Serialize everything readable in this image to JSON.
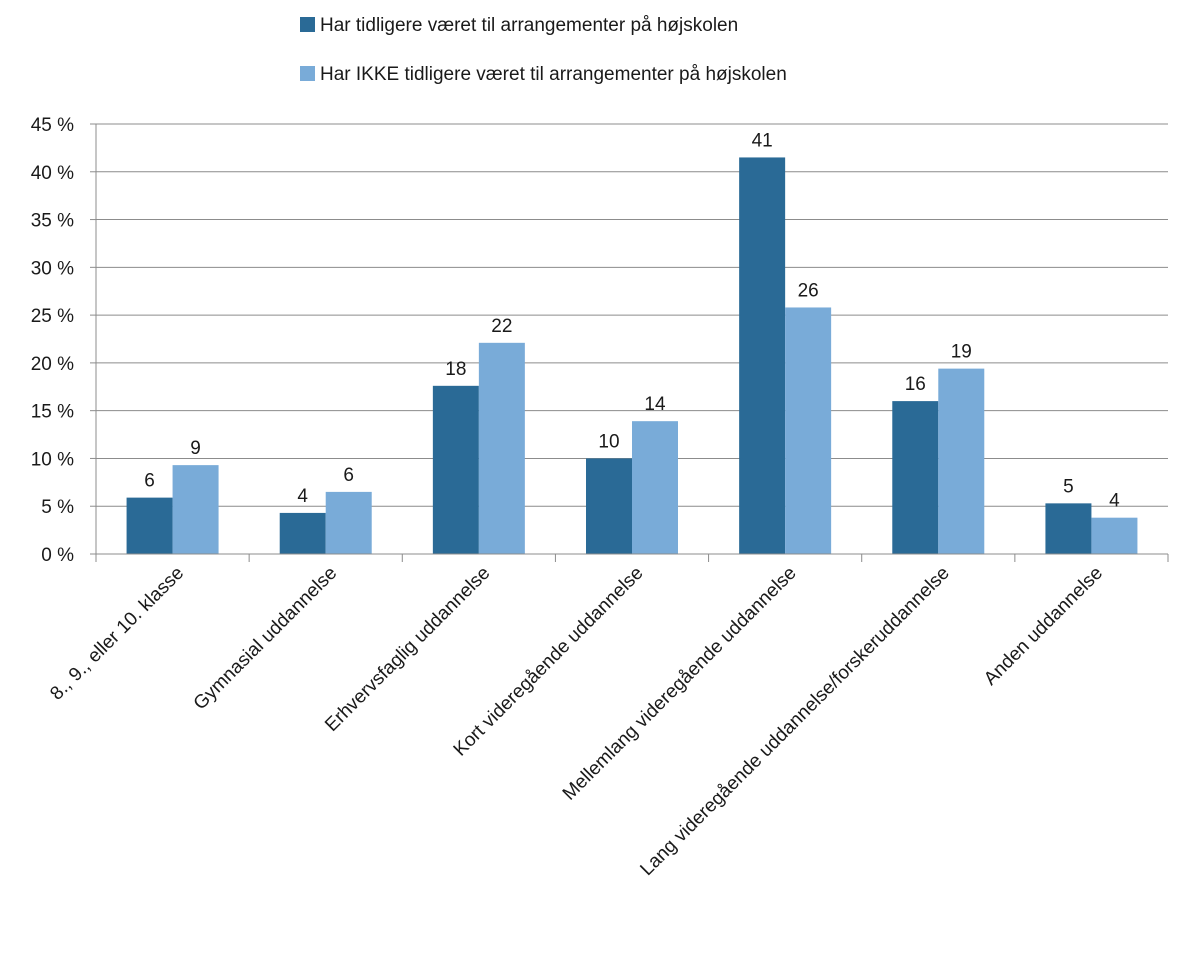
{
  "chart_data": {
    "type": "bar",
    "title": "",
    "xlabel": "",
    "ylabel": "",
    "categories": [
      "8., 9., eller 10. klasse",
      "Gymnasial uddannelse",
      "Erhvervsfaglig uddannelse",
      "Kort videregående uddannelse",
      "Mellemlang videregående uddannelse",
      "Lang videregående uddannelse/forskeruddannelse",
      "Anden uddannelse"
    ],
    "series": [
      {
        "name": "Har tidligere været til arrangementer på højskolen",
        "color": "#2a6a96",
        "values": [
          5.9,
          4.3,
          17.6,
          10.0,
          41.5,
          16.0,
          5.3
        ],
        "labels": [
          "6",
          "4",
          "18",
          "10",
          "41",
          "16",
          "5"
        ]
      },
      {
        "name": "Har IKKE tidligere været til arrangementer på højskolen",
        "color": "#79abd8",
        "values": [
          9.3,
          6.5,
          22.1,
          13.9,
          25.8,
          19.4,
          3.8
        ],
        "labels": [
          "9",
          "6",
          "22",
          "14",
          "26",
          "19",
          "4"
        ]
      }
    ],
    "ylim": [
      0,
      45
    ],
    "yticks": [
      0,
      5,
      10,
      15,
      20,
      25,
      30,
      35,
      40,
      45
    ],
    "ytick_labels": [
      "0 %",
      "5 %",
      "10 %",
      "15 %",
      "20 %",
      "25 %",
      "30 %",
      "35 %",
      "40 %",
      "45 %"
    ],
    "grid": true,
    "legend_position": "top-center"
  }
}
